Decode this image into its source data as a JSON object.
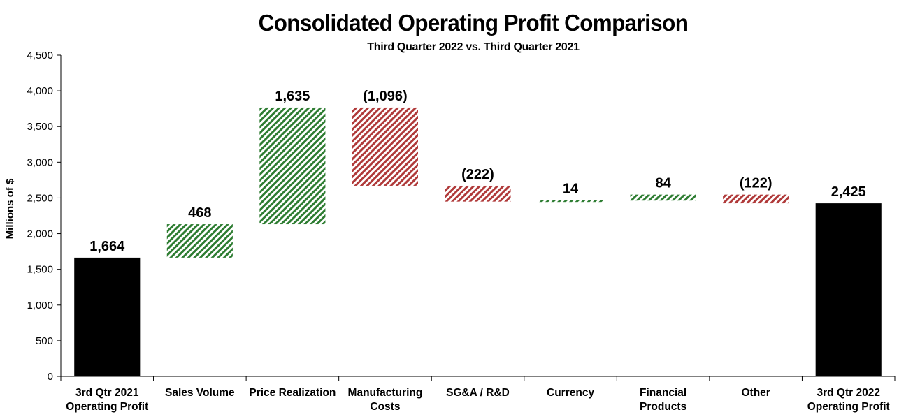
{
  "chart_data": {
    "type": "waterfall",
    "title": "Consolidated Operating Profit Comparison",
    "subtitle": "Third Quarter 2022 vs. Third Quarter 2021",
    "ylabel": "Millions of $",
    "xlabel": "",
    "ylim": [
      0,
      4500
    ],
    "ytick_values": [
      0,
      500,
      1000,
      1500,
      2000,
      2500,
      3000,
      3500,
      4000,
      4500
    ],
    "ytick_labels": [
      "0",
      "500",
      "1,000",
      "1,500",
      "2,000",
      "2,500",
      "3,000",
      "3,500",
      "4,000",
      "4,500"
    ],
    "categories": [
      [
        "3rd Qtr 2021",
        "Operating Profit"
      ],
      [
        "Sales Volume"
      ],
      [
        "Price Realization"
      ],
      [
        "Manufacturing",
        "Costs"
      ],
      [
        "SG&A / R&D"
      ],
      [
        "Currency"
      ],
      [
        "Financial",
        "Products"
      ],
      [
        "Other"
      ],
      [
        "3rd Qtr 2022",
        "Operating Profit"
      ]
    ],
    "values": [
      1664,
      468,
      1635,
      -1096,
      -222,
      14,
      84,
      -122,
      2425
    ],
    "kinds": [
      "total",
      "delta",
      "delta",
      "delta",
      "delta",
      "delta",
      "delta",
      "delta",
      "total"
    ],
    "value_labels": [
      "1,664",
      "468",
      "1,635",
      "(1,096)",
      "(222)",
      "14",
      "84",
      "(122)",
      "2,425"
    ],
    "colors": {
      "total": "#000000",
      "increase": "#2e7d32",
      "decrease": "#b03a3a"
    },
    "grid": false,
    "legend": "none"
  }
}
